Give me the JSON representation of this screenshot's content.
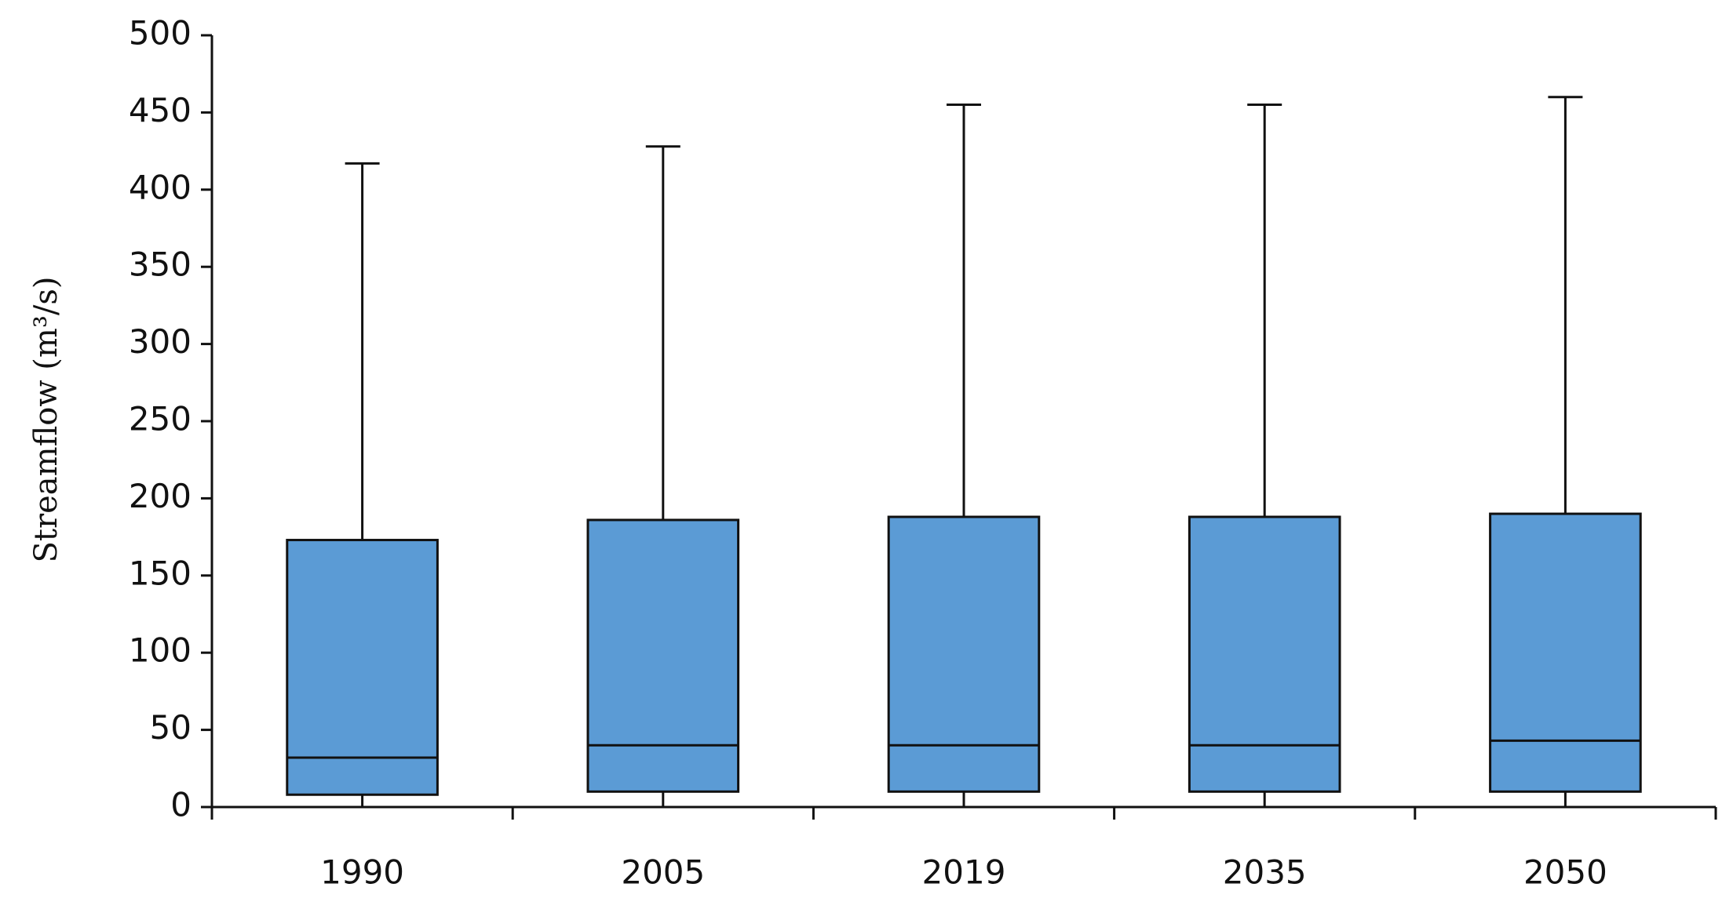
{
  "chart_data": {
    "type": "box",
    "y_label": "Streamflow (m³/s)",
    "categories": [
      "1990",
      "2005",
      "2019",
      "2035",
      "2050"
    ],
    "min": [
      0,
      0,
      0,
      0,
      0
    ],
    "q1": [
      8,
      10,
      10,
      10,
      10
    ],
    "median": [
      32,
      40,
      40,
      40,
      43
    ],
    "q3": [
      173,
      186,
      188,
      188,
      190
    ],
    "max": [
      417,
      428,
      455,
      455,
      460
    ],
    "color": "#5b9bd5",
    "ylim": [
      0,
      500
    ],
    "yticks": [
      0,
      50,
      100,
      150,
      200,
      250,
      300,
      350,
      400,
      450,
      500
    ],
    "grid": false
  }
}
